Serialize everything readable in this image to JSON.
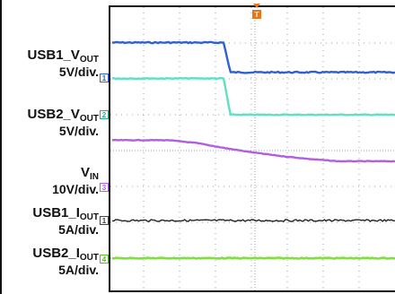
{
  "labels": [
    {
      "main": "USB1_V",
      "sub": "OUT",
      "scale": "5V/div.",
      "marker": "1"
    },
    {
      "main": "USB2_V",
      "sub": "OUT",
      "scale": "5V/div.",
      "marker": "2"
    },
    {
      "main": "V",
      "sub": "IN",
      "scale": "10V/div.",
      "marker": "3"
    },
    {
      "main": "USB1_I",
      "sub": "OUT",
      "scale": "5A/div.",
      "marker": "1"
    },
    {
      "main": "USB2_I",
      "sub": "OUT",
      "scale": "5A/div.",
      "marker": "4"
    }
  ],
  "trigger_marker": "T",
  "colors": {
    "usb1_vout": "#2f5fd0",
    "usb2_vout": "#5fe0c0",
    "vin": "#b25ee0",
    "usb1_iout": "#222222",
    "usb2_iout": "#7fe03c",
    "grid": "#9aa0aa",
    "trigger": "#e8741c"
  },
  "chart_data": {
    "type": "line",
    "grid": true,
    "x": [
      0,
      1,
      2,
      3,
      4,
      5,
      6,
      7,
      8,
      9,
      10
    ],
    "series": [
      {
        "name": "USB1_VOUT",
        "values": [
          5,
          5,
          5,
          5,
          5,
          0.9,
          0.9,
          0.9,
          0.9,
          0.9,
          0.9
        ]
      },
      {
        "name": "USB2_VOUT",
        "values": [
          5,
          5,
          5,
          5,
          5,
          0,
          0,
          0,
          0,
          0,
          0
        ]
      },
      {
        "name": "VIN",
        "values": [
          12,
          12,
          12,
          11.2,
          9.8,
          8.6,
          7.6,
          6.8,
          6.2,
          6.2,
          6.2
        ]
      },
      {
        "name": "USB1_IOUT",
        "values": [
          0,
          0,
          0,
          0,
          0,
          0,
          0,
          0,
          0,
          0,
          0
        ]
      },
      {
        "name": "USB2_IOUT",
        "values": [
          0,
          0,
          0,
          0,
          0,
          0,
          0,
          0,
          0,
          0,
          0
        ]
      }
    ]
  }
}
